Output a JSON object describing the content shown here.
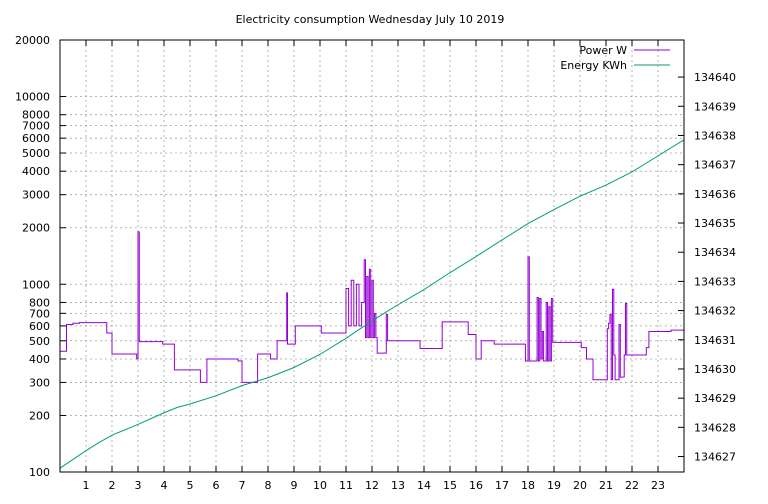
{
  "chart_data": {
    "type": "line",
    "title": "Electricity consumption Wednesday July 10 2019",
    "xlabel": "",
    "ylabel": "",
    "y2label": "",
    "xlim": [
      0,
      24
    ],
    "ylim": [
      100,
      20000
    ],
    "y_scale": "log",
    "y2lim": [
      134626.47,
      134641.27
    ],
    "grid": true,
    "legend_position": "top-right",
    "x_ticks": [
      1,
      2,
      3,
      4,
      5,
      6,
      7,
      8,
      9,
      10,
      11,
      12,
      13,
      14,
      15,
      16,
      17,
      18,
      19,
      20,
      21,
      22,
      23
    ],
    "y_ticks": [
      {
        "value": 100,
        "label": "100"
      },
      {
        "value": 200,
        "label": "200"
      },
      {
        "value": 300,
        "label": "300"
      },
      {
        "value": 400,
        "label": "400"
      },
      {
        "value": 500,
        "label": "500"
      },
      {
        "value": 600,
        "label": "600"
      },
      {
        "value": 700,
        "label": "700"
      },
      {
        "value": 800,
        "label": "800"
      },
      {
        "value": 1000,
        "label": "1000"
      },
      {
        "value": 2000,
        "label": "2000"
      },
      {
        "value": 3000,
        "label": "3000"
      },
      {
        "value": 4000,
        "label": "4000"
      },
      {
        "value": 5000,
        "label": "5000"
      },
      {
        "value": 6000,
        "label": "6000"
      },
      {
        "value": 7000,
        "label": "7000"
      },
      {
        "value": 8000,
        "label": "8000"
      },
      {
        "value": 10000,
        "label": "10000"
      },
      {
        "value": 20000,
        "label": "20000"
      }
    ],
    "y2_ticks": [
      134627,
      134628,
      134629,
      134630,
      134631,
      134632,
      134633,
      134634,
      134635,
      134636,
      134637,
      134638,
      134639,
      134640
    ],
    "series": [
      {
        "name": "Power W",
        "axis": "y",
        "color": "#9400d3",
        "style": "steps",
        "points": [
          [
            0.0,
            440
          ],
          [
            0.25,
            610
          ],
          [
            0.5,
            620
          ],
          [
            0.75,
            625
          ],
          [
            1.0,
            625
          ],
          [
            1.5,
            625
          ],
          [
            1.8,
            550
          ],
          [
            2.0,
            425
          ],
          [
            2.5,
            425
          ],
          [
            2.95,
            400
          ],
          [
            3.0,
            1900
          ],
          [
            3.05,
            495
          ],
          [
            3.2,
            495
          ],
          [
            3.5,
            495
          ],
          [
            3.95,
            480
          ],
          [
            4.2,
            480
          ],
          [
            4.4,
            350
          ],
          [
            5.0,
            350
          ],
          [
            5.4,
            300
          ],
          [
            5.65,
            400
          ],
          [
            6.0,
            400
          ],
          [
            6.5,
            400
          ],
          [
            6.85,
            390
          ],
          [
            7.0,
            300
          ],
          [
            7.5,
            300
          ],
          [
            7.6,
            425
          ],
          [
            8.0,
            425
          ],
          [
            8.1,
            400
          ],
          [
            8.35,
            500
          ],
          [
            8.65,
            500
          ],
          [
            8.72,
            900
          ],
          [
            8.75,
            480
          ],
          [
            9.0,
            480
          ],
          [
            9.05,
            600
          ],
          [
            9.5,
            600
          ],
          [
            10.0,
            600
          ],
          [
            10.05,
            550
          ],
          [
            10.5,
            550
          ],
          [
            10.9,
            550
          ],
          [
            11.0,
            950
          ],
          [
            11.1,
            600
          ],
          [
            11.2,
            1050
          ],
          [
            11.3,
            600
          ],
          [
            11.4,
            1000
          ],
          [
            11.5,
            600
          ],
          [
            11.6,
            800
          ],
          [
            11.7,
            1350
          ],
          [
            11.75,
            520
          ],
          [
            11.8,
            1100
          ],
          [
            11.85,
            520
          ],
          [
            11.9,
            1200
          ],
          [
            11.95,
            520
          ],
          [
            12.0,
            1050
          ],
          [
            12.05,
            520
          ],
          [
            12.1,
            700
          ],
          [
            12.15,
            520
          ],
          [
            12.2,
            430
          ],
          [
            12.5,
            430
          ],
          [
            12.55,
            690
          ],
          [
            12.6,
            500
          ],
          [
            13.0,
            500
          ],
          [
            13.5,
            500
          ],
          [
            13.85,
            455
          ],
          [
            14.0,
            455
          ],
          [
            14.5,
            455
          ],
          [
            14.7,
            630
          ],
          [
            15.0,
            630
          ],
          [
            15.5,
            630
          ],
          [
            15.7,
            540
          ],
          [
            15.9,
            540
          ],
          [
            16.0,
            400
          ],
          [
            16.2,
            500
          ],
          [
            16.5,
            500
          ],
          [
            16.7,
            480
          ],
          [
            17.0,
            480
          ],
          [
            17.5,
            480
          ],
          [
            17.9,
            390
          ],
          [
            18.0,
            1400
          ],
          [
            18.05,
            390
          ],
          [
            18.3,
            390
          ],
          [
            18.35,
            850
          ],
          [
            18.4,
            390
          ],
          [
            18.45,
            840
          ],
          [
            18.5,
            400
          ],
          [
            18.55,
            560
          ],
          [
            18.6,
            390
          ],
          [
            18.7,
            800
          ],
          [
            18.75,
            390
          ],
          [
            18.8,
            760
          ],
          [
            18.85,
            390
          ],
          [
            18.9,
            840
          ],
          [
            18.95,
            490
          ],
          [
            19.0,
            490
          ],
          [
            19.5,
            490
          ],
          [
            20.0,
            490
          ],
          [
            20.05,
            460
          ],
          [
            20.25,
            400
          ],
          [
            20.5,
            310
          ],
          [
            21.0,
            310
          ],
          [
            21.05,
            580
          ],
          [
            21.1,
            620
          ],
          [
            21.15,
            690
          ],
          [
            21.2,
            310
          ],
          [
            21.25,
            940
          ],
          [
            21.3,
            420
          ],
          [
            21.35,
            310
          ],
          [
            21.5,
            610
          ],
          [
            21.55,
            320
          ],
          [
            21.7,
            420
          ],
          [
            21.75,
            790
          ],
          [
            21.8,
            420
          ],
          [
            22.0,
            420
          ],
          [
            22.5,
            420
          ],
          [
            22.55,
            460
          ],
          [
            22.65,
            560
          ],
          [
            23.0,
            560
          ],
          [
            23.5,
            570
          ],
          [
            24.0,
            570
          ]
        ]
      },
      {
        "name": "Energy KWh",
        "axis": "y2",
        "color": "#009e73",
        "style": "line",
        "points": [
          [
            0.0,
            134626.6
          ],
          [
            0.5,
            134626.9
          ],
          [
            1.0,
            134627.2
          ],
          [
            1.5,
            134627.48
          ],
          [
            2.0,
            134627.73
          ],
          [
            3.0,
            134628.1
          ],
          [
            4.0,
            134628.5
          ],
          [
            4.5,
            134628.68
          ],
          [
            5.0,
            134628.8
          ],
          [
            6.0,
            134629.08
          ],
          [
            7.0,
            134629.43
          ],
          [
            8.0,
            134629.7
          ],
          [
            9.0,
            134630.05
          ],
          [
            10.0,
            134630.5
          ],
          [
            11.0,
            134631.05
          ],
          [
            12.0,
            134631.65
          ],
          [
            13.0,
            134632.2
          ],
          [
            14.0,
            134632.72
          ],
          [
            15.0,
            134633.3
          ],
          [
            16.0,
            134633.85
          ],
          [
            17.0,
            134634.42
          ],
          [
            18.0,
            134634.98
          ],
          [
            19.0,
            134635.46
          ],
          [
            20.0,
            134635.92
          ],
          [
            21.0,
            134636.3
          ],
          [
            22.0,
            134636.75
          ],
          [
            23.0,
            134637.3
          ],
          [
            24.0,
            134637.85
          ]
        ]
      }
    ]
  }
}
